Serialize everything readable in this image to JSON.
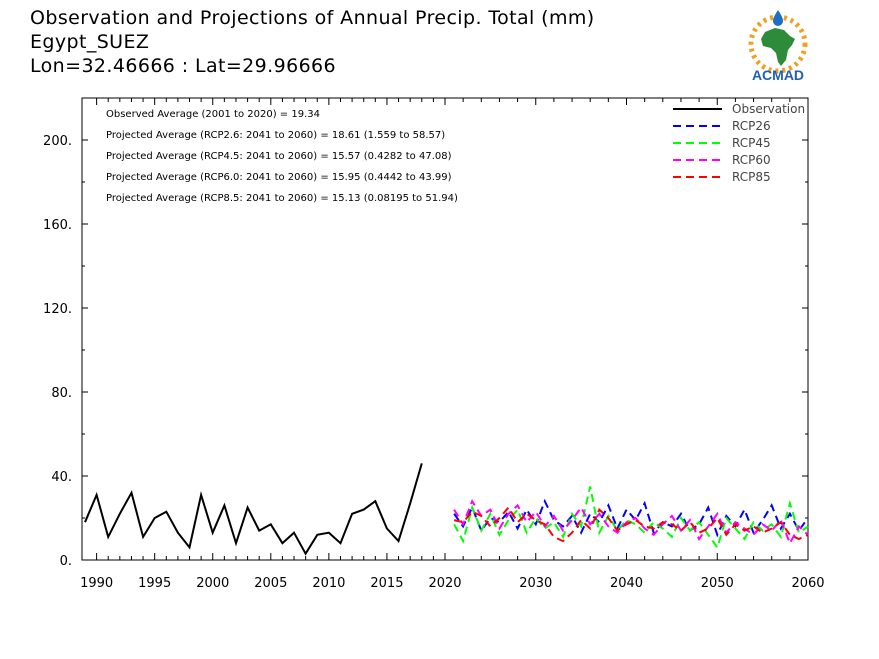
{
  "title": {
    "line1": "Observation and Projections of Annual Precip. Total (mm)",
    "line2": "Egypt_SUEZ",
    "line3": "Lon=32.46666 : Lat=29.96666"
  },
  "logo": {
    "text": "ACMAD",
    "colors": {
      "africa": "#2e8b3a",
      "rays": "#f0a020",
      "drop": "#1f6fc0",
      "text": "#1f5fb5"
    }
  },
  "annotations": [
    "Observed Average (2001 to 2020) = 19.34",
    "Projected Average (RCP2.6: 2041 to 2060) = 18.61 (1.559 to 58.57)",
    "Projected Average (RCP4.5: 2041 to 2060) = 15.57 (0.4282 to 47.08)",
    "Projected Average (RCP6.0: 2041 to 2060) = 15.95 (0.4442 to 43.99)",
    "Projected Average (RCP8.5: 2041 to 2060) = 15.13 (0.08195 to 51.94)"
  ],
  "chart_data": {
    "type": "line",
    "xlim": [
      1989,
      2060
    ],
    "ylim": [
      0,
      220
    ],
    "x_ticks": [
      1990,
      1995,
      2000,
      2005,
      2010,
      2015,
      2020,
      2030,
      2040,
      2050,
      2060
    ],
    "y_ticks": [
      {
        "value": 0,
        "label": "0."
      },
      {
        "value": 40,
        "label": "40."
      },
      {
        "value": 80,
        "label": "80."
      },
      {
        "value": 120,
        "label": "120."
      },
      {
        "value": 160,
        "label": "160."
      },
      {
        "value": 200,
        "label": "200."
      }
    ],
    "legend_position": "top-right",
    "series": [
      {
        "name": "Observation",
        "color": "#000000",
        "dashed": false,
        "x": [
          1989,
          1990,
          1991,
          1992,
          1993,
          1994,
          1995,
          1996,
          1997,
          1998,
          1999,
          2000,
          2001,
          2002,
          2003,
          2004,
          2005,
          2006,
          2007,
          2008,
          2009,
          2010,
          2011,
          2012,
          2013,
          2014,
          2015,
          2016,
          2017,
          2018,
          2019,
          2020
        ],
        "y": [
          18,
          31,
          11,
          22,
          32,
          11,
          20,
          23,
          13,
          6,
          31,
          13,
          26,
          8,
          25,
          14,
          17,
          8,
          13,
          3,
          12,
          13,
          8,
          22,
          24,
          28,
          15,
          9,
          27,
          46,
          null,
          null
        ]
      },
      {
        "name": "RCP26",
        "color": "#0000ff",
        "dashed": true,
        "x": [
          2021,
          2022,
          2023,
          2024,
          2025,
          2026,
          2027,
          2028,
          2029,
          2030,
          2031,
          2032,
          2033,
          2034,
          2035,
          2036,
          2037,
          2038,
          2039,
          2040,
          2041,
          2042,
          2043,
          2044,
          2045,
          2046,
          2047,
          2048,
          2049,
          2050,
          2051,
          2052,
          2053,
          2054,
          2055,
          2056,
          2057,
          2058,
          2059,
          2060
        ],
        "y": [
          22,
          16,
          25,
          14,
          20,
          18,
          23,
          15,
          24,
          17,
          28,
          19,
          16,
          21,
          13,
          22,
          18,
          26,
          15,
          24,
          19,
          27,
          13,
          18,
          16,
          22,
          14,
          17,
          25,
          12,
          21,
          16,
          24,
          13,
          19,
          26,
          15,
          22,
          14,
          20
        ]
      },
      {
        "name": "RCP45",
        "color": "#00ff00",
        "dashed": true,
        "x": [
          2021,
          2022,
          2023,
          2024,
          2025,
          2026,
          2027,
          2028,
          2029,
          2030,
          2031,
          2032,
          2033,
          2034,
          2035,
          2036,
          2037,
          2038,
          2039,
          2040,
          2041,
          2042,
          2043,
          2044,
          2045,
          2046,
          2047,
          2048,
          2049,
          2050,
          2051,
          2052,
          2053,
          2054,
          2055,
          2056,
          2057,
          2058,
          2059,
          2060
        ],
        "y": [
          17,
          9,
          25,
          14,
          22,
          12,
          19,
          24,
          13,
          20,
          15,
          18,
          11,
          22,
          16,
          35,
          13,
          21,
          14,
          19,
          17,
          13,
          18,
          15,
          11,
          20,
          14,
          18,
          12,
          6,
          20,
          15,
          10,
          18,
          14,
          17,
          11,
          27,
          13,
          16
        ]
      },
      {
        "name": "RCP60",
        "color": "#ff00ff",
        "dashed": true,
        "x": [
          2021,
          2022,
          2023,
          2024,
          2025,
          2026,
          2027,
          2028,
          2029,
          2030,
          2031,
          2032,
          2033,
          2034,
          2035,
          2036,
          2037,
          2038,
          2039,
          2040,
          2041,
          2042,
          2043,
          2044,
          2045,
          2046,
          2047,
          2048,
          2049,
          2050,
          2051,
          2052,
          2053,
          2054,
          2055,
          2056,
          2057,
          2058,
          2059,
          2060
        ],
        "y": [
          24,
          17,
          28,
          21,
          24,
          15,
          22,
          26,
          18,
          23,
          16,
          21,
          14,
          19,
          25,
          17,
          22,
          16,
          13,
          18,
          20,
          15,
          12,
          17,
          21,
          14,
          19,
          10,
          16,
          22,
          13,
          18,
          15,
          12,
          17,
          14,
          19,
          8,
          16,
          12
        ]
      },
      {
        "name": "RCP85",
        "color": "#ff0000",
        "dashed": true,
        "x": [
          2021,
          2022,
          2023,
          2024,
          2025,
          2026,
          2027,
          2028,
          2029,
          2030,
          2031,
          2032,
          2033,
          2034,
          2035,
          2036,
          2037,
          2038,
          2039,
          2040,
          2041,
          2042,
          2043,
          2044,
          2045,
          2046,
          2047,
          2048,
          2049,
          2050,
          2051,
          2052,
          2053,
          2054,
          2055,
          2056,
          2057,
          2058,
          2059,
          2060
        ],
        "y": [
          19,
          18,
          23,
          21,
          16,
          20,
          25,
          18,
          22,
          19,
          17,
          11,
          9,
          13,
          19,
          15,
          24,
          20,
          14,
          17,
          19,
          16,
          15,
          18,
          17,
          14,
          18,
          13,
          15,
          20,
          12,
          17,
          14,
          16,
          13,
          15,
          18,
          12,
          10,
          12
        ]
      }
    ]
  }
}
